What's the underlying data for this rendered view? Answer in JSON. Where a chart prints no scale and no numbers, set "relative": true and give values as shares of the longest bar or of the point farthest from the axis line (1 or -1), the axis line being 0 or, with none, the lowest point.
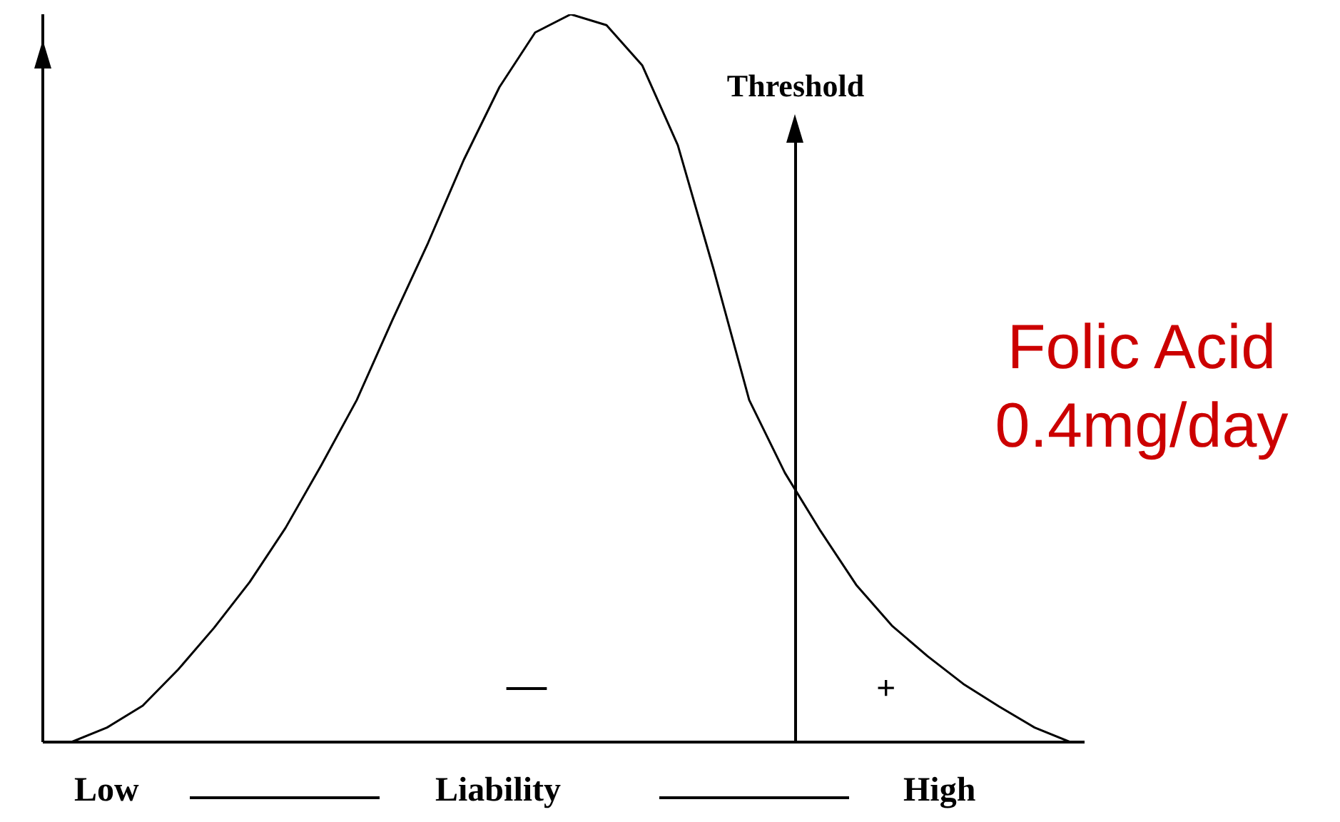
{
  "chart_data": {
    "type": "line",
    "relative": true,
    "xlabel": "Liability",
    "categories": [
      null,
      null,
      null,
      null,
      null,
      null,
      null,
      null,
      null,
      null,
      null,
      null,
      null,
      null,
      null,
      null,
      null,
      null,
      null,
      null,
      null,
      null,
      null,
      null,
      null,
      null,
      null,
      null,
      null
    ],
    "series": [
      {
        "color": "#000000",
        "values": [
          0,
          0.02,
          0.05,
          0.1,
          0.157,
          0.22,
          0.294,
          0.38,
          0.47,
          0.58,
          0.686,
          0.8,
          0.9,
          0.975,
          1,
          0.985,
          0.93,
          0.82,
          0.65,
          0.47,
          0.37,
          0.29,
          0.216,
          0.16,
          0.118,
          0.08,
          0.049,
          0.02,
          0
        ]
      }
    ],
    "annotations": [
      "Low",
      "High",
      "—",
      "+",
      "Folic Acid",
      "0.4mg/day",
      "Threshold"
    ]
  }
}
